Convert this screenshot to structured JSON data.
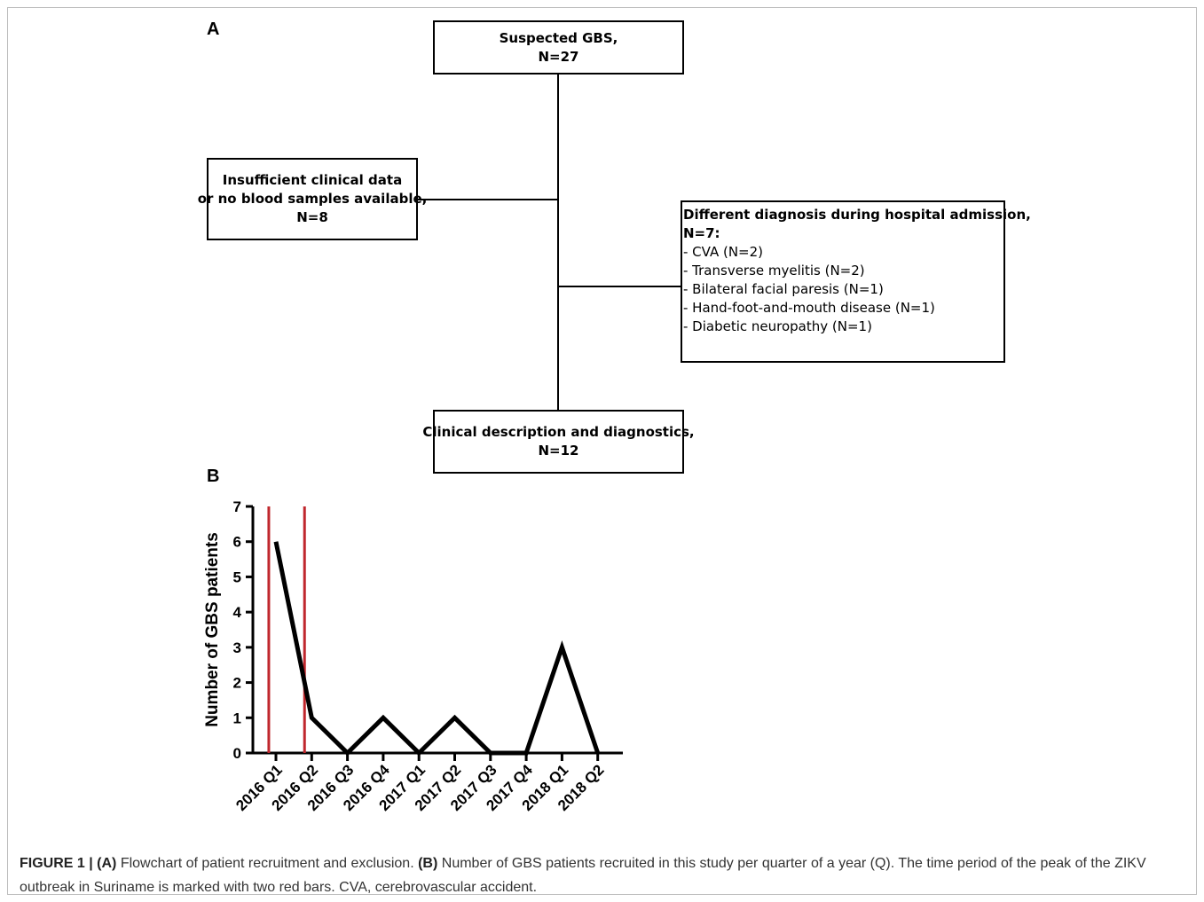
{
  "panel_a": {
    "label": "A",
    "box_suspected": {
      "lines": [
        "Suspected GBS,",
        "N=27"
      ]
    },
    "box_insufficient": {
      "lines": [
        "Insufficient clinical data",
        "or no blood samples available,",
        "N=8"
      ]
    },
    "box_different": {
      "title_lines": [
        "Different diagnosis during hospital admission,",
        "N=7:"
      ],
      "items": [
        "- CVA (N=2)",
        "- Transverse myelitis (N=2)",
        "- Bilateral facial paresis (N=1)",
        "- Hand-foot-and-mouth disease (N=1)",
        "- Diabetic neuropathy (N=1)"
      ]
    },
    "box_clinical": {
      "lines": [
        "Clinical description and diagnostics,",
        "N=12"
      ]
    }
  },
  "panel_b": {
    "label": "B"
  },
  "chart_data": {
    "type": "line",
    "categories": [
      "2016 Q1",
      "2016 Q2",
      "2016 Q3",
      "2016 Q4",
      "2017 Q1",
      "2017 Q2",
      "2017 Q3",
      "2017 Q4",
      "2018 Q1",
      "2018 Q2"
    ],
    "series": [
      {
        "values": [
          6,
          1,
          0,
          1,
          0,
          1,
          0,
          0,
          3,
          0
        ],
        "color": "#000000"
      }
    ],
    "ylabel": "Number of GBS patients",
    "xlabel": "",
    "ylim": [
      0,
      7
    ],
    "yticks": [
      0,
      1,
      2,
      3,
      4,
      5,
      6,
      7
    ],
    "red_bars": {
      "color": "#c0272d",
      "x_positions": [
        -0.2,
        0.8
      ]
    },
    "grid": false,
    "legend": "none"
  },
  "caption": {
    "figure_label": "FIGURE 1 | ",
    "a_label": "(A)",
    "a_text": " Flowchart of patient recruitment and exclusion. ",
    "b_label": "(B)",
    "b_text": " Number of GBS patients recruited in this study per quarter of a year (Q). The time period of the peak of the ZIKV outbreak in Suriname is marked with two red bars. CVA, cerebrovascular accident."
  }
}
